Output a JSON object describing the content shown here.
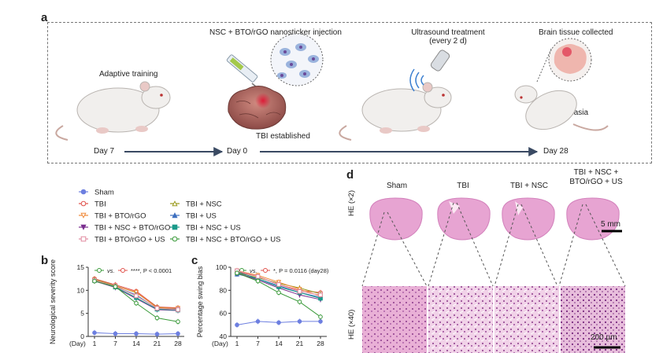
{
  "panel_a": {
    "label": "a",
    "steps": {
      "adaptive": "Adaptive training",
      "injection": "NSC + BTO/rGO nanosticker injection",
      "ultrasound_1": "Ultrasound treatment",
      "ultrasound_2": "(every 2 d)",
      "collected": "Brain tissue collected",
      "tbi": "TBI established",
      "euthanasia": "Euthanasia"
    },
    "timeline": {
      "day7": "Day 7",
      "day0": "Day 0",
      "day28": "Day 28"
    }
  },
  "legend": [
    {
      "label": "Sham",
      "color": "#6d7fe0",
      "marker": "circle"
    },
    {
      "label": "TBI",
      "color": "#e0504a",
      "marker": "circle-open"
    },
    {
      "label": "TBI + NSC",
      "color": "#9a9a1c",
      "marker": "triangle-open"
    },
    {
      "label": "TBI + BTO/rGO",
      "color": "#f08a3a",
      "marker": "triangle-down-open"
    },
    {
      "label": "TBI + US",
      "color": "#3d6fbf",
      "marker": "triangle"
    },
    {
      "label": "TBI + NSC + BTO/rGO",
      "color": "#7a2f8f",
      "marker": "triangle-down"
    },
    {
      "label": "TBI + NSC + US",
      "color": "#1a9a8a",
      "marker": "square"
    },
    {
      "label": "TBI + BTO/rGO + US",
      "color": "#e08aa0",
      "marker": "square-open"
    },
    {
      "label": "TBI + NSC + BTO/rGO + US",
      "color": "#3a9a3a",
      "marker": "circle-open"
    }
  ],
  "panel_b": {
    "label": "b",
    "ylabel": "Neurological severity score",
    "xlabel": "(Day)",
    "stat_vs": "vs.",
    "stat_p": "****, P < 0.0001"
  },
  "panel_c": {
    "label": "c",
    "ylabel": "Percentage swing bias",
    "xlabel": "(Day)",
    "stat_vs": "vs.",
    "stat_p": "*, P = 0.0116 (day28)"
  },
  "panel_d": {
    "label": "d",
    "columns": [
      "Sham",
      "TBI",
      "TBI + NSC",
      "TBI + NSC + BTO/rGO + US"
    ],
    "row_top": "HE (×2)",
    "row_bottom": "HE (×40)",
    "scale_top": "5 mm",
    "scale_bottom": "200 µm"
  },
  "chart_data": [
    {
      "type": "line",
      "title": "",
      "ylabel": "Neurological severity score",
      "xlabel": "(Day)",
      "x": [
        1,
        7,
        14,
        21,
        28
      ],
      "ylim": [
        0,
        15
      ],
      "yticks": [
        0,
        5,
        10,
        15
      ],
      "series": [
        {
          "name": "Sham",
          "values": [
            0.8,
            0.6,
            0.6,
            0.5,
            0.6
          ]
        },
        {
          "name": "TBI",
          "values": [
            12.5,
            11.2,
            9.8,
            6.4,
            6.2
          ]
        },
        {
          "name": "TBI + NSC",
          "values": [
            12.4,
            11.0,
            9.5,
            6.3,
            6.0
          ]
        },
        {
          "name": "TBI + BTO/rGO",
          "values": [
            12.3,
            10.9,
            9.6,
            6.2,
            6.1
          ]
        },
        {
          "name": "TBI + US",
          "values": [
            12.2,
            10.8,
            9.0,
            6.0,
            5.9
          ]
        },
        {
          "name": "TBI + NSC + BTO/rGO",
          "values": [
            12.0,
            10.6,
            8.2,
            5.8,
            5.6
          ]
        },
        {
          "name": "TBI + NSC + US",
          "values": [
            12.1,
            10.7,
            8.4,
            5.9,
            5.7
          ]
        },
        {
          "name": "TBI + BTO/rGO + US",
          "values": [
            12.2,
            10.9,
            8.8,
            6.1,
            5.8
          ]
        },
        {
          "name": "TBI + NSC + BTO/rGO + US",
          "values": [
            12.0,
            10.8,
            7.2,
            4.0,
            3.2
          ]
        }
      ]
    },
    {
      "type": "line",
      "title": "",
      "ylabel": "Percentage swing bias",
      "xlabel": "(Day)",
      "x": [
        1,
        7,
        14,
        21,
        28
      ],
      "ylim": [
        40,
        100
      ],
      "yticks": [
        40,
        60,
        80,
        100
      ],
      "series": [
        {
          "name": "Sham",
          "values": [
            50,
            53,
            52,
            53,
            53
          ]
        },
        {
          "name": "TBI",
          "values": [
            96,
            92,
            85,
            80,
            78
          ]
        },
        {
          "name": "TBI + NSC",
          "values": [
            95,
            91,
            86,
            82,
            77
          ]
        },
        {
          "name": "TBI + BTO/rGO",
          "values": [
            97,
            93,
            87,
            81,
            75
          ]
        },
        {
          "name": "TBI + US",
          "values": [
            94,
            90,
            84,
            78,
            74
          ]
        },
        {
          "name": "TBI + NSC + BTO/rGO",
          "values": [
            95,
            89,
            82,
            76,
            72
          ]
        },
        {
          "name": "TBI + NSC + US",
          "values": [
            96,
            90,
            83,
            78,
            73
          ]
        },
        {
          "name": "TBI + BTO/rGO + US",
          "values": [
            97,
            92,
            85,
            79,
            76
          ]
        },
        {
          "name": "TBI + NSC + BTO/rGO + US",
          "values": [
            95,
            88,
            78,
            70,
            57
          ]
        }
      ]
    }
  ]
}
